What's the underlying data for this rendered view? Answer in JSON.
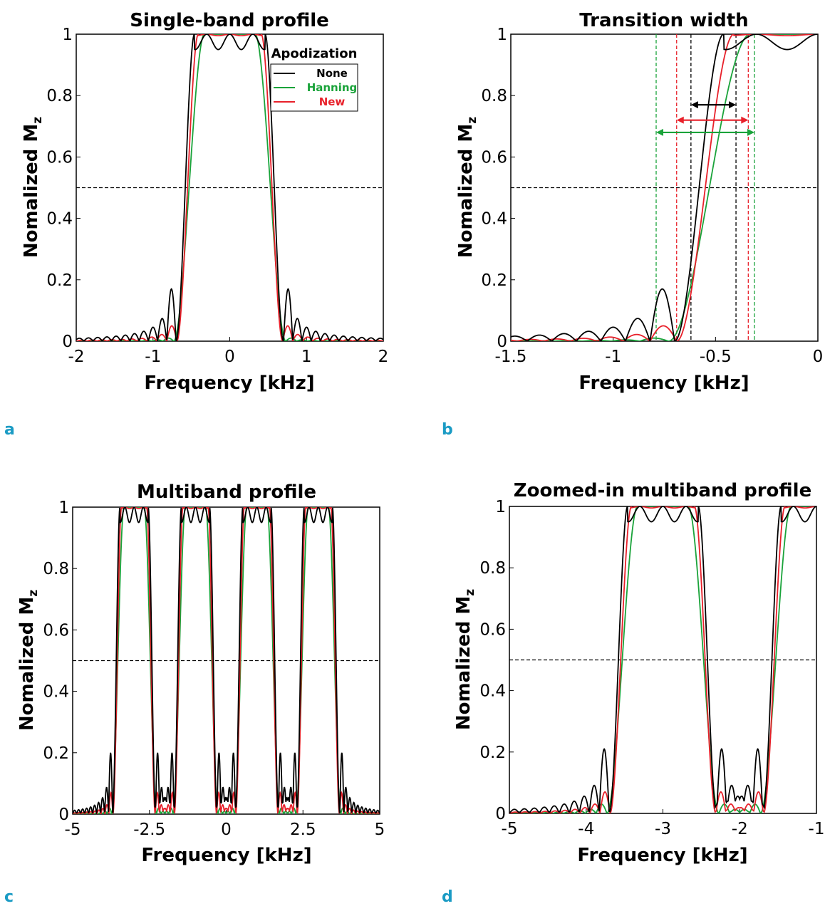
{
  "figure": {
    "panel_letters": [
      "a",
      "b",
      "c",
      "d"
    ],
    "colors": {
      "None": "#000000",
      "Hanning": "#1aa33a",
      "New": "#e8202a"
    }
  },
  "legend": {
    "title": "Apodization",
    "entries": [
      {
        "label": "None",
        "color": "#000000"
      },
      {
        "label": "Hanning",
        "color": "#1aa33a"
      },
      {
        "label": "New",
        "color": "#e8202a"
      }
    ]
  },
  "chart_data": [
    {
      "id": "a",
      "type": "line",
      "title": "Single-band profile",
      "xlabel": "Frequency [kHz]",
      "ylabel": "Nomalized M",
      "ylabel_sub": "z",
      "xlim": [
        -2,
        2
      ],
      "ylim": [
        0,
        1
      ],
      "xticks": [
        -2,
        -1,
        0,
        1,
        2
      ],
      "xtick_labels": [
        "-2",
        "-1",
        "0",
        "1",
        "2"
      ],
      "yticks": [
        0,
        0.2,
        0.4,
        0.6,
        0.8,
        1
      ],
      "ytick_labels": [
        "0",
        "0.2",
        "0.4",
        "0.6",
        "0.8",
        "1"
      ],
      "reference_line": {
        "y": 0.5,
        "style": "dashed"
      },
      "legend": {
        "position": "top-right"
      },
      "bands": [
        0
      ],
      "series": [
        {
          "name": "None",
          "color": "#000000",
          "edge": 0.58,
          "half_width": 0.12,
          "ripple": 0.05,
          "sidelobe": 0.17,
          "sidelobe_spacing": 0.12
        },
        {
          "name": "Hanning",
          "color": "#1aa33a",
          "edge": 0.53,
          "half_width": 0.2,
          "ripple": 0.0,
          "sidelobe": 0.01,
          "sidelobe_spacing": 0.14
        },
        {
          "name": "New",
          "color": "#e8202a",
          "edge": 0.55,
          "half_width": 0.14,
          "ripple": 0.005,
          "sidelobe": 0.05,
          "sidelobe_spacing": 0.13
        }
      ]
    },
    {
      "id": "b",
      "type": "line",
      "title": "Transition width",
      "xlabel": "Frequency [kHz]",
      "ylabel": "Nomalized M",
      "ylabel_sub": "z",
      "xlim": [
        -1.5,
        0
      ],
      "ylim": [
        0,
        1
      ],
      "xticks": [
        -1.5,
        -1,
        -0.5,
        0
      ],
      "xtick_labels": [
        "-1.5",
        "-1",
        "-0.5",
        "0"
      ],
      "yticks": [
        0,
        0.2,
        0.4,
        0.6,
        0.8,
        1
      ],
      "ytick_labels": [
        "0",
        "0.2",
        "0.4",
        "0.6",
        "0.8",
        "1"
      ],
      "reference_line": {
        "y": 0.5,
        "style": "dashed"
      },
      "bands": [
        0
      ],
      "series": [
        {
          "name": "None",
          "color": "#000000",
          "edge": 0.58,
          "half_width": 0.12,
          "ripple": 0.05,
          "sidelobe": 0.17,
          "sidelobe_spacing": 0.12
        },
        {
          "name": "Hanning",
          "color": "#1aa33a",
          "edge": 0.53,
          "half_width": 0.2,
          "ripple": 0.0,
          "sidelobe": 0.01,
          "sidelobe_spacing": 0.14
        },
        {
          "name": "New",
          "color": "#e8202a",
          "edge": 0.55,
          "half_width": 0.14,
          "ripple": 0.005,
          "sidelobe": 0.05,
          "sidelobe_spacing": 0.13
        }
      ],
      "vertical_markers": [
        {
          "color": "#000000",
          "x": [
            -0.62,
            -0.4
          ]
        },
        {
          "color": "#e8202a",
          "x": [
            -0.69,
            -0.34
          ]
        },
        {
          "color": "#1aa33a",
          "x": [
            -0.79,
            -0.31
          ]
        }
      ],
      "width_arrows": [
        {
          "color": "#000000",
          "x": [
            -0.62,
            -0.4
          ],
          "y": 0.77
        },
        {
          "color": "#e8202a",
          "x": [
            -0.69,
            -0.34
          ],
          "y": 0.72
        },
        {
          "color": "#1aa33a",
          "x": [
            -0.79,
            -0.31
          ],
          "y": 0.68
        }
      ]
    },
    {
      "id": "c",
      "type": "line",
      "title": "Multiband profile",
      "xlabel": "Frequency [kHz]",
      "ylabel": "Nomalized M",
      "ylabel_sub": "z",
      "xlim": [
        -5,
        5
      ],
      "ylim": [
        0,
        1
      ],
      "xticks": [
        -5,
        -2.5,
        0,
        2.5,
        5
      ],
      "xtick_labels": [
        "-5",
        "-2.5",
        "0",
        "2.5",
        "5"
      ],
      "yticks": [
        0,
        0.2,
        0.4,
        0.6,
        0.8,
        1
      ],
      "ytick_labels": [
        "0",
        "0.2",
        "0.4",
        "0.6",
        "0.8",
        "1"
      ],
      "reference_line": {
        "y": 0.5,
        "style": "dashed"
      },
      "bands": [
        -3,
        -1,
        1,
        3
      ],
      "series": [
        {
          "name": "None",
          "color": "#000000",
          "edge": 0.58,
          "half_width": 0.12,
          "ripple": 0.05,
          "sidelobe": 0.2,
          "sidelobe_spacing": 0.13
        },
        {
          "name": "Hanning",
          "color": "#1aa33a",
          "edge": 0.53,
          "half_width": 0.2,
          "ripple": 0.0,
          "sidelobe": 0.02,
          "sidelobe_spacing": 0.14
        },
        {
          "name": "New",
          "color": "#e8202a",
          "edge": 0.55,
          "half_width": 0.14,
          "ripple": 0.005,
          "sidelobe": 0.07,
          "sidelobe_spacing": 0.13
        }
      ]
    },
    {
      "id": "d",
      "type": "line",
      "title": "Zoomed-in multiband profile",
      "xlabel": "Frequency [kHz]",
      "ylabel": "Nomalized M",
      "ylabel_sub": "z",
      "xlim": [
        -5,
        -1
      ],
      "ylim": [
        0,
        1
      ],
      "xticks": [
        -5,
        -4,
        -3,
        -2,
        -1
      ],
      "xtick_labels": [
        "-5",
        "-4",
        "-3",
        "-2",
        "-1"
      ],
      "yticks": [
        0,
        0.2,
        0.4,
        0.6,
        0.8,
        1
      ],
      "ytick_labels": [
        "0",
        "0.2",
        "0.4",
        "0.6",
        "0.8",
        "1"
      ],
      "reference_line": {
        "y": 0.5,
        "style": "dashed"
      },
      "bands": [
        -3,
        -1
      ],
      "series": [
        {
          "name": "None",
          "color": "#000000",
          "edge": 0.58,
          "half_width": 0.12,
          "ripple": 0.05,
          "sidelobe": 0.21,
          "sidelobe_spacing": 0.13
        },
        {
          "name": "Hanning",
          "color": "#1aa33a",
          "edge": 0.53,
          "half_width": 0.2,
          "ripple": 0.0,
          "sidelobe": 0.03,
          "sidelobe_spacing": 0.14
        },
        {
          "name": "New",
          "color": "#e8202a",
          "edge": 0.55,
          "half_width": 0.14,
          "ripple": 0.005,
          "sidelobe": 0.07,
          "sidelobe_spacing": 0.13
        }
      ]
    }
  ]
}
